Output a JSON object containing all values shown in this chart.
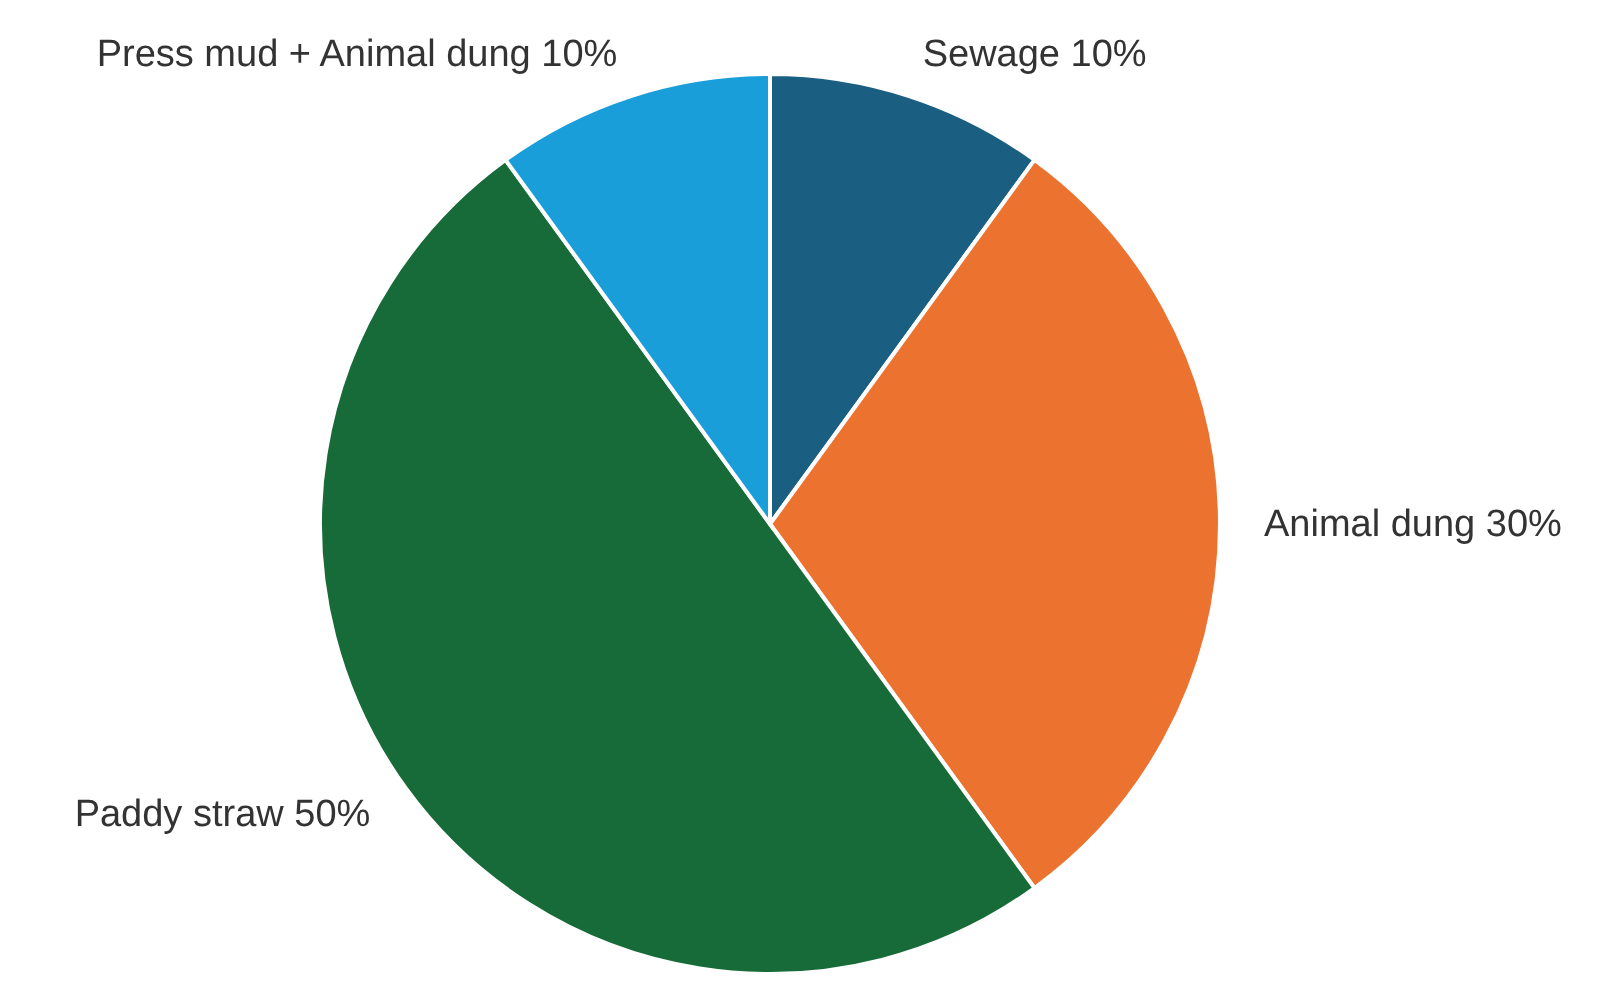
{
  "chart_data": {
    "type": "pie",
    "categories": [
      "Sewage",
      "Animal dung",
      "Paddy straw",
      "Press mud + Animal dung"
    ],
    "values": [
      10,
      30,
      50,
      10
    ],
    "value_labels": [
      "10%",
      "30%",
      "50%",
      "10%"
    ],
    "colors": [
      "#1a5e82",
      "#ec7230",
      "#176b38",
      "#1a9ed9"
    ]
  }
}
